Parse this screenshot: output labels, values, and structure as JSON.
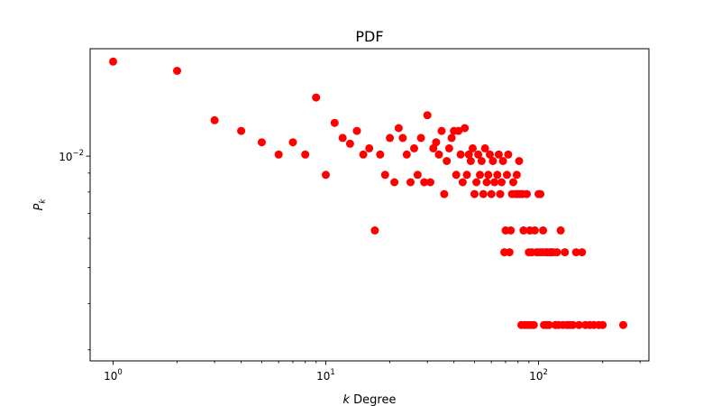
{
  "chart_data": {
    "type": "scatter",
    "title": "PDF",
    "xlabel_italic": "k",
    "xlabel_rest": " Degree",
    "ylabel_main": "P",
    "ylabel_sub": "k",
    "x_scale": "log",
    "y_scale": "log",
    "xlim": [
      0.78,
      330
    ],
    "ylim": [
      0.0028,
      0.0195
    ],
    "grid": false,
    "legend": "none",
    "marker_color": "#ff0000",
    "x_ticks": [
      {
        "value": 1,
        "base": "10",
        "exp": "0"
      },
      {
        "value": 10,
        "base": "10",
        "exp": "1"
      },
      {
        "value": 100,
        "base": "10",
        "exp": "2"
      }
    ],
    "y_ticks": [
      {
        "value": 0.01,
        "base": "10",
        "exp": "−2"
      }
    ],
    "x_minor_ticks": [
      2,
      3,
      4,
      5,
      6,
      7,
      8,
      9,
      20,
      30,
      40,
      50,
      60,
      70,
      80,
      90,
      200,
      300
    ],
    "y_minor_ticks": [
      0.003,
      0.004,
      0.005,
      0.006,
      0.007,
      0.008,
      0.009
    ],
    "series": [
      {
        "points": [
          [
            1,
            0.018
          ],
          [
            2,
            0.017
          ],
          [
            3,
            0.0125
          ],
          [
            4,
            0.0117
          ],
          [
            5,
            0.0109
          ],
          [
            6,
            0.0101
          ],
          [
            7,
            0.0109
          ],
          [
            8,
            0.0101
          ],
          [
            9,
            0.0144
          ],
          [
            10,
            0.0089
          ],
          [
            11,
            0.0123
          ],
          [
            12,
            0.0112
          ],
          [
            13,
            0.0108
          ],
          [
            14,
            0.0117
          ],
          [
            15,
            0.0101
          ],
          [
            16,
            0.0105
          ],
          [
            17,
            0.0063
          ],
          [
            18,
            0.0101
          ],
          [
            19,
            0.0089
          ],
          [
            20,
            0.0112
          ],
          [
            21,
            0.0085
          ],
          [
            22,
            0.0119
          ],
          [
            23,
            0.0112
          ],
          [
            24,
            0.0101
          ],
          [
            25,
            0.0085
          ],
          [
            26,
            0.0105
          ],
          [
            27,
            0.0089
          ],
          [
            28,
            0.0112
          ],
          [
            29,
            0.0085
          ],
          [
            30,
            0.0129
          ],
          [
            31,
            0.0085
          ],
          [
            32,
            0.0105
          ],
          [
            33,
            0.0109
          ],
          [
            34,
            0.0101
          ],
          [
            35,
            0.0117
          ],
          [
            36,
            0.0079
          ],
          [
            37,
            0.0097
          ],
          [
            38,
            0.0105
          ],
          [
            39,
            0.0112
          ],
          [
            40,
            0.0117
          ],
          [
            41,
            0.0089
          ],
          [
            42,
            0.0117
          ],
          [
            43,
            0.0101
          ],
          [
            44,
            0.0085
          ],
          [
            45,
            0.0119
          ],
          [
            46,
            0.0089
          ],
          [
            47,
            0.0101
          ],
          [
            48,
            0.0097
          ],
          [
            49,
            0.0105
          ],
          [
            50,
            0.0079
          ],
          [
            51,
            0.0085
          ],
          [
            52,
            0.0101
          ],
          [
            53,
            0.0089
          ],
          [
            54,
            0.0097
          ],
          [
            55,
            0.0079
          ],
          [
            56,
            0.0105
          ],
          [
            57,
            0.0085
          ],
          [
            58,
            0.0089
          ],
          [
            59,
            0.0101
          ],
          [
            60,
            0.0079
          ],
          [
            61,
            0.0097
          ],
          [
            62,
            0.0085
          ],
          [
            64,
            0.0089
          ],
          [
            65,
            0.0101
          ],
          [
            66,
            0.0079
          ],
          [
            67,
            0.0085
          ],
          [
            68,
            0.0097
          ],
          [
            69,
            0.0055
          ],
          [
            70,
            0.0063
          ],
          [
            71,
            0.0089
          ],
          [
            72,
            0.0101
          ],
          [
            73,
            0.0055
          ],
          [
            74,
            0.0063
          ],
          [
            75,
            0.0079
          ],
          [
            76,
            0.0085
          ],
          [
            78,
            0.0079
          ],
          [
            79,
            0.0089
          ],
          [
            80,
            0.0079
          ],
          [
            81,
            0.0097
          ],
          [
            82,
            0.0079
          ],
          [
            83,
            0.0035
          ],
          [
            84,
            0.0079
          ],
          [
            85,
            0.0063
          ],
          [
            86,
            0.0035
          ],
          [
            88,
            0.0079
          ],
          [
            89,
            0.0035
          ],
          [
            90,
            0.0055
          ],
          [
            91,
            0.0063
          ],
          [
            92,
            0.0035
          ],
          [
            93,
            0.0055
          ],
          [
            95,
            0.0035
          ],
          [
            96,
            0.0063
          ],
          [
            98,
            0.0055
          ],
          [
            100,
            0.0079
          ],
          [
            101,
            0.0055
          ],
          [
            102,
            0.0079
          ],
          [
            104,
            0.0055
          ],
          [
            105,
            0.0063
          ],
          [
            106,
            0.0035
          ],
          [
            108,
            0.0055
          ],
          [
            109,
            0.0035
          ],
          [
            110,
            0.0055
          ],
          [
            112,
            0.0035
          ],
          [
            113,
            0.0055
          ],
          [
            115,
            0.0055
          ],
          [
            117,
            0.0055
          ],
          [
            120,
            0.0035
          ],
          [
            122,
            0.0055
          ],
          [
            124,
            0.0035
          ],
          [
            127,
            0.0063
          ],
          [
            130,
            0.0035
          ],
          [
            133,
            0.0055
          ],
          [
            136,
            0.0035
          ],
          [
            140,
            0.0035
          ],
          [
            145,
            0.0035
          ],
          [
            150,
            0.0055
          ],
          [
            155,
            0.0035
          ],
          [
            160,
            0.0055
          ],
          [
            166,
            0.0035
          ],
          [
            174,
            0.0035
          ],
          [
            182,
            0.0035
          ],
          [
            192,
            0.0035
          ],
          [
            200,
            0.0035
          ],
          [
            250,
            0.0035
          ]
        ]
      }
    ]
  }
}
